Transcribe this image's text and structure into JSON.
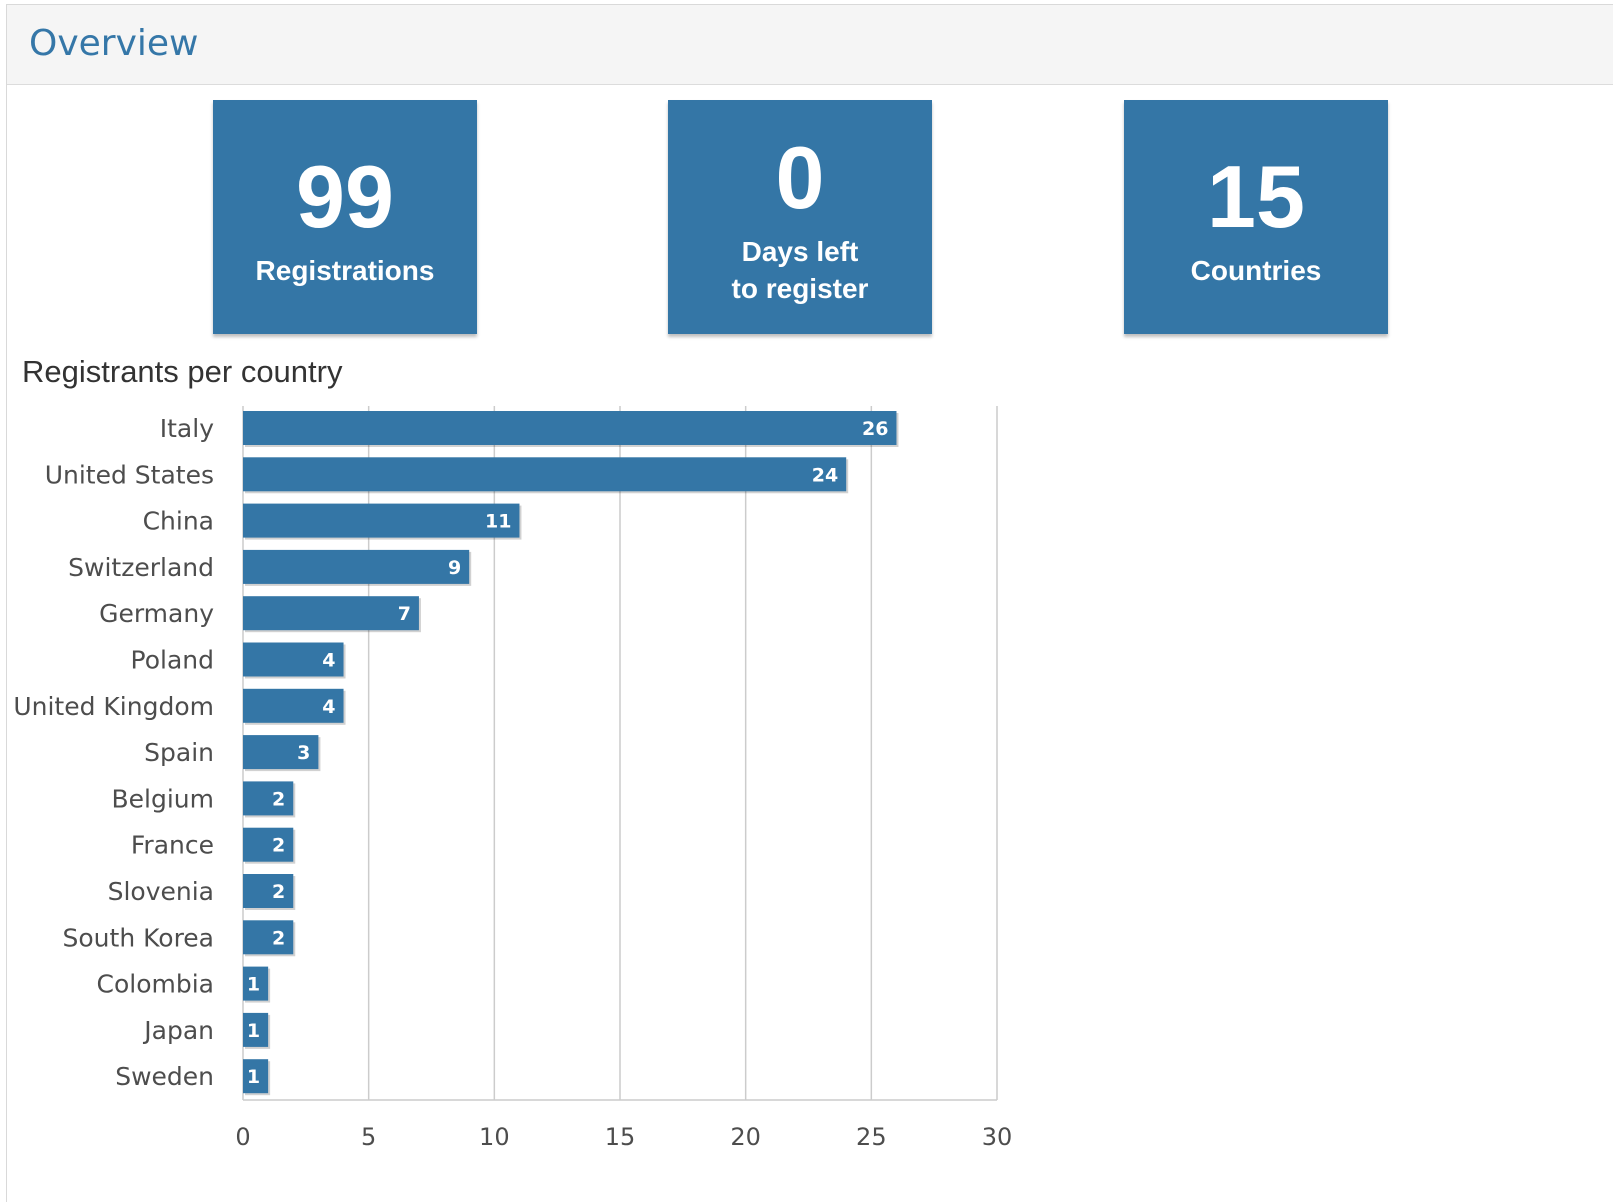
{
  "header": {
    "title": "Overview"
  },
  "stats": [
    {
      "value": "99",
      "label_lines": [
        "Registrations"
      ]
    },
    {
      "value": "0",
      "label_lines": [
        "Days left",
        "to register"
      ]
    },
    {
      "value": "15",
      "label_lines": [
        "Countries"
      ]
    }
  ],
  "colors": {
    "accent": "#3476a6",
    "title": "#3577a8",
    "grid": "#cccccc",
    "text": "#4d4d4d"
  },
  "chart_data": {
    "type": "bar",
    "orientation": "horizontal",
    "title": "Registrants per country",
    "categories": [
      "Italy",
      "United States",
      "China",
      "Switzerland",
      "Germany",
      "Poland",
      "United Kingdom",
      "Spain",
      "Belgium",
      "France",
      "Slovenia",
      "South Korea",
      "Colombia",
      "Japan",
      "Sweden"
    ],
    "values": [
      26,
      24,
      11,
      9,
      7,
      4,
      4,
      3,
      2,
      2,
      2,
      2,
      1,
      1,
      1
    ],
    "xlim": [
      0,
      30
    ],
    "xticks": [
      0,
      5,
      10,
      15,
      20,
      25,
      30
    ],
    "grid": true,
    "data_labels": true
  }
}
